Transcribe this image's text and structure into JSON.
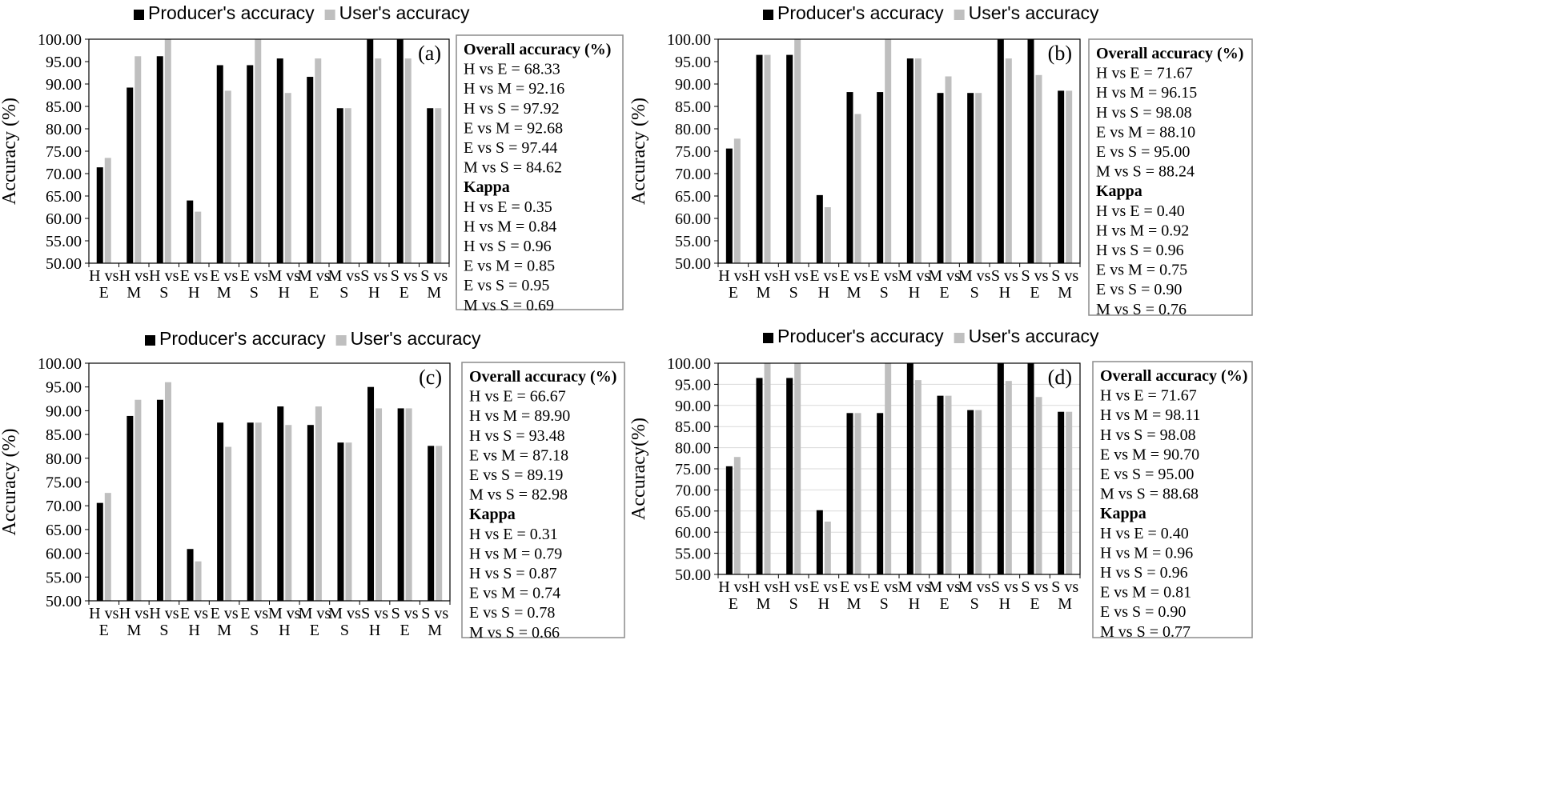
{
  "legend": {
    "producer": "Producer's accuracy",
    "user": "User's accuracy"
  },
  "colors": {
    "producer": "#000000",
    "user": "#bfbfbf",
    "box_border": "#8c8c8c",
    "grid": "#d9d9d9"
  },
  "chart_data": [
    {
      "type": "bar",
      "panel_label": "(a)",
      "ylabel": "Accuracy (%)",
      "ylim": [
        50,
        100
      ],
      "yticks": [
        "50.00",
        "55.00",
        "60.00",
        "65.00",
        "70.00",
        "75.00",
        "80.00",
        "85.00",
        "90.00",
        "95.00",
        "100.00"
      ],
      "categories": [
        [
          "H vs",
          "E"
        ],
        [
          "H vs",
          "M"
        ],
        [
          "H vs",
          "S"
        ],
        [
          "E vs",
          "H"
        ],
        [
          "E vs",
          "M"
        ],
        [
          "E vs",
          "S"
        ],
        [
          "M vs",
          "H"
        ],
        [
          "M vs",
          "E"
        ],
        [
          "M vs",
          "S"
        ],
        [
          "S vs",
          "H"
        ],
        [
          "S vs",
          "E"
        ],
        [
          "S vs",
          "M"
        ]
      ],
      "series": [
        {
          "name": "Producer's accuracy",
          "values": [
            71.4,
            89.2,
            96.2,
            64.0,
            94.2,
            94.2,
            95.7,
            91.6,
            84.6,
            100.0,
            100.0,
            84.6
          ]
        },
        {
          "name": "User's accuracy",
          "values": [
            73.5,
            96.2,
            100.0,
            61.5,
            88.5,
            100.0,
            88.0,
            95.7,
            84.6,
            95.7,
            95.7,
            84.6
          ]
        }
      ],
      "legend_position": "top",
      "grid": false,
      "stats": {
        "overall_title": "Overall accuracy (%)",
        "overall": [
          "H vs E = 68.33",
          "H vs M = 92.16",
          "H vs S = 97.92",
          "E vs M = 92.68",
          "E vs S = 97.44",
          "M vs S = 84.62"
        ],
        "kappa_title": "Kappa",
        "kappa": [
          "H vs E =  0.35",
          "H vs M = 0.84",
          "H vs S = 0.96",
          "E vs M = 0.85",
          "E vs S = 0.95",
          "M vs S = 0.69"
        ]
      }
    },
    {
      "type": "bar",
      "panel_label": "(b)",
      "ylabel": "Accuracy (%)",
      "ylim": [
        50,
        100
      ],
      "yticks": [
        "50.00",
        "55.00",
        "60.00",
        "65.00",
        "70.00",
        "75.00",
        "80.00",
        "85.00",
        "90.00",
        "95.00",
        "100.00"
      ],
      "categories": [
        [
          "H vs",
          "E"
        ],
        [
          "H vs",
          "M"
        ],
        [
          "H vs",
          "S"
        ],
        [
          "E vs",
          "H"
        ],
        [
          "E vs",
          "M"
        ],
        [
          "E vs",
          "S"
        ],
        [
          "M vs",
          "H"
        ],
        [
          "M vs",
          "E"
        ],
        [
          "M vs",
          "S"
        ],
        [
          "S vs",
          "H"
        ],
        [
          "S vs",
          "E"
        ],
        [
          "S vs",
          "M"
        ]
      ],
      "series": [
        {
          "name": "Producer's accuracy",
          "values": [
            75.6,
            96.5,
            96.5,
            65.2,
            88.2,
            88.2,
            95.7,
            88.0,
            88.0,
            100.0,
            100.0,
            88.5
          ]
        },
        {
          "name": "User's accuracy",
          "values": [
            77.8,
            96.5,
            100.0,
            62.5,
            83.3,
            100.0,
            95.7,
            91.7,
            88.0,
            95.7,
            92.0,
            88.5
          ]
        }
      ],
      "legend_position": "top",
      "grid": false,
      "stats": {
        "overall_title": "Overall accuracy (%)",
        "overall": [
          "H vs E = 71.67",
          "H vs M = 96.15",
          "H vs S = 98.08",
          "E vs M = 88.10",
          "E vs S = 95.00",
          "M vs S = 88.24"
        ],
        "kappa_title": "Kappa",
        "kappa": [
          "H vs E =  0.40",
          "H vs M = 0.92",
          "H vs S = 0.96",
          "E vs M = 0.75",
          "E vs S = 0.90",
          "M vs S = 0.76"
        ]
      }
    },
    {
      "type": "bar",
      "panel_label": "(c)",
      "ylabel": "Accuracy (%)",
      "ylim": [
        50,
        100
      ],
      "yticks": [
        "50.00",
        "55.00",
        "60.00",
        "65.00",
        "70.00",
        "75.00",
        "80.00",
        "85.00",
        "90.00",
        "95.00",
        "100.00"
      ],
      "categories": [
        [
          "H vs",
          "E"
        ],
        [
          "H vs",
          "M"
        ],
        [
          "H vs",
          "S"
        ],
        [
          "E vs",
          "H"
        ],
        [
          "E vs",
          "M"
        ],
        [
          "E vs",
          "S"
        ],
        [
          "M vs",
          "H"
        ],
        [
          "M vs",
          "E"
        ],
        [
          "M vs",
          "S"
        ],
        [
          "S vs",
          "H"
        ],
        [
          "S vs",
          "E"
        ],
        [
          "S vs",
          "M"
        ]
      ],
      "series": [
        {
          "name": "Producer's accuracy",
          "values": [
            70.6,
            88.9,
            92.3,
            60.9,
            87.5,
            87.5,
            90.9,
            87.0,
            83.3,
            95.0,
            90.5,
            82.6
          ]
        },
        {
          "name": "User's accuracy",
          "values": [
            72.7,
            92.3,
            96.0,
            58.3,
            82.4,
            87.5,
            87.0,
            90.9,
            83.3,
            90.5,
            90.5,
            82.6
          ]
        }
      ],
      "legend_position": "top",
      "grid": false,
      "stats": {
        "overall_title": "Overall accuracy (%)",
        "overall": [
          "H vs E = 66.67",
          "H vs M = 89.90",
          "H vs S = 93.48",
          "E vs M = 87.18",
          "E vs S = 89.19",
          "M vs S = 82.98"
        ],
        "kappa_title": "Kappa",
        "kappa": [
          "H vs E =  0.31",
          "H vs M = 0.79",
          "H vs S = 0.87",
          "E vs M = 0.74",
          "E vs S = 0.78",
          "M vs S = 0.66"
        ]
      }
    },
    {
      "type": "bar",
      "panel_label": "(d)",
      "ylabel": "Accuracy(%)",
      "ylim": [
        50,
        100
      ],
      "yticks": [
        "50.00",
        "55.00",
        "60.00",
        "65.00",
        "70.00",
        "75.00",
        "80.00",
        "85.00",
        "90.00",
        "95.00",
        "100.00"
      ],
      "categories": [
        [
          "H vs",
          "E"
        ],
        [
          "H vs",
          "M"
        ],
        [
          "H vs",
          "S"
        ],
        [
          "E vs",
          "H"
        ],
        [
          "E vs",
          "M"
        ],
        [
          "E vs",
          "S"
        ],
        [
          "M vs",
          "H"
        ],
        [
          "M vs",
          "E"
        ],
        [
          "M vs",
          "S"
        ],
        [
          "S vs",
          "H"
        ],
        [
          "S vs",
          "E"
        ],
        [
          "S vs",
          "M"
        ]
      ],
      "series": [
        {
          "name": "Producer's accuracy",
          "values": [
            75.6,
            96.5,
            96.5,
            65.2,
            88.2,
            88.2,
            100.0,
            92.3,
            88.9,
            100.0,
            100.0,
            88.5
          ]
        },
        {
          "name": "User's accuracy",
          "values": [
            77.8,
            100.0,
            100.0,
            62.5,
            88.2,
            100.0,
            96.0,
            92.3,
            88.9,
            95.8,
            92.0,
            88.5
          ]
        }
      ],
      "legend_position": "top",
      "grid": true,
      "stats": {
        "overall_title": "Overall accuracy (%)",
        "overall": [
          "H vs E = 71.67",
          "H vs M = 98.11",
          "H vs S = 98.08",
          "E vs M = 90.70",
          "E vs S = 95.00",
          "M vs S = 88.68"
        ],
        "kappa_title": "Kappa",
        "kappa": [
          "H vs E =  0.40",
          "H vs M = 0.96",
          "H vs S = 0.96",
          "E vs M = 0.81",
          "E vs S = 0.90",
          "M vs S = 0.77"
        ]
      }
    }
  ]
}
